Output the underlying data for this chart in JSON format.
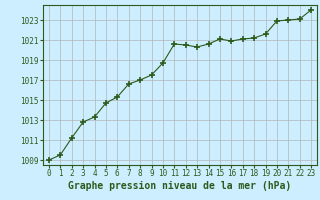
{
  "x": [
    0,
    1,
    2,
    3,
    4,
    5,
    6,
    7,
    8,
    9,
    10,
    11,
    12,
    13,
    14,
    15,
    16,
    17,
    18,
    19,
    20,
    21,
    22,
    23
  ],
  "y": [
    1009.0,
    1009.5,
    1011.2,
    1012.8,
    1013.3,
    1014.7,
    1015.3,
    1016.6,
    1017.0,
    1017.5,
    1018.7,
    1020.6,
    1020.5,
    1020.3,
    1020.6,
    1021.1,
    1020.9,
    1021.1,
    1021.2,
    1021.6,
    1022.9,
    1023.0,
    1023.1,
    1024.0
  ],
  "line_color": "#2d5a1b",
  "marker_color": "#2d5a1b",
  "bg_color": "#cceeff",
  "grid_color": "#b0b0b0",
  "xlabel": "Graphe pression niveau de la mer (hPa)",
  "xlabel_color": "#2d5a1b",
  "ylim": [
    1008.5,
    1024.5
  ],
  "xlim": [
    -0.5,
    23.5
  ],
  "yticks": [
    1009,
    1011,
    1013,
    1015,
    1017,
    1019,
    1021,
    1023
  ],
  "xticks": [
    0,
    1,
    2,
    3,
    4,
    5,
    6,
    7,
    8,
    9,
    10,
    11,
    12,
    13,
    14,
    15,
    16,
    17,
    18,
    19,
    20,
    21,
    22,
    23
  ],
  "tick_fontsize": 5.5,
  "xlabel_fontsize": 7,
  "border_color": "#2d5a1b",
  "spine_color": "#2d5a1b"
}
